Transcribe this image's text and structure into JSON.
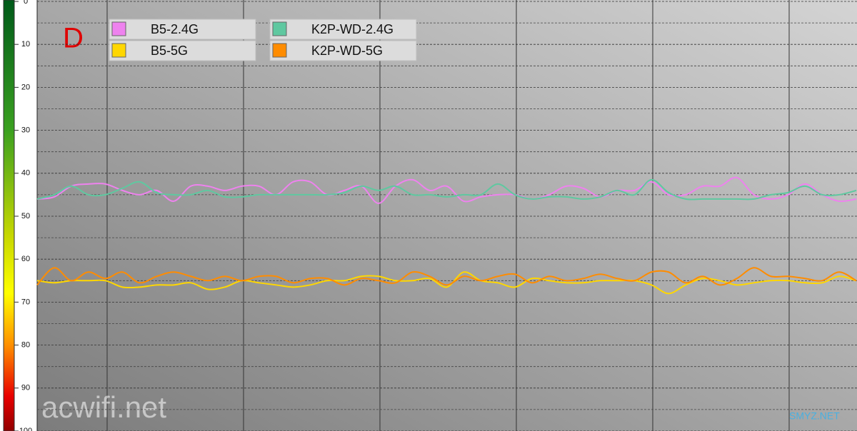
{
  "chart_data": {
    "type": "line",
    "label": "D",
    "watermarks": [
      "acwifi.net",
      "SMYZ.NET"
    ],
    "x": [
      0,
      1,
      2,
      3,
      4,
      5,
      6,
      7,
      8,
      9,
      10,
      11,
      12,
      13,
      14,
      15,
      16,
      17,
      18,
      19,
      20,
      21,
      22,
      23,
      24,
      25,
      26,
      27,
      28,
      29,
      30,
      31,
      32,
      33,
      34,
      35,
      36,
      37,
      38,
      39,
      40,
      41,
      42,
      43,
      44,
      45,
      46,
      47,
      48
    ],
    "xlim": [
      0,
      48
    ],
    "ylim": [
      0,
      100
    ],
    "y_reversed": true,
    "yticks": [
      0,
      10,
      20,
      30,
      40,
      50,
      60,
      70,
      80,
      90,
      100
    ],
    "grid": true,
    "legend": "top-left",
    "series": [
      {
        "name": "B5-2.4G",
        "color": "#ee82ee",
        "values": [
          46,
          45.5,
          43,
          42.5,
          42.5,
          44,
          45,
          44,
          46.5,
          43,
          43,
          44,
          43,
          43,
          45,
          42,
          42,
          45,
          44,
          43,
          47,
          43,
          41.5,
          44,
          43,
          46.5,
          45.5,
          45,
          45,
          46,
          45,
          43,
          43.5,
          45.5,
          44,
          44,
          42,
          45,
          45,
          43,
          43,
          41,
          45,
          46,
          45,
          42.5,
          45,
          46.5,
          46
        ]
      },
      {
        "name": "K2P-WD-2.4G",
        "color": "#5fc8a0",
        "values": [
          46,
          45,
          43,
          45,
          45,
          43.5,
          42,
          44.5,
          45,
          45,
          44,
          45.5,
          45.5,
          45,
          45,
          45,
          45,
          45,
          44.5,
          43,
          44,
          43,
          45,
          45,
          45.5,
          45,
          45,
          42.5,
          45,
          46,
          45.5,
          45.5,
          46,
          45.5,
          44,
          45,
          41.5,
          44.5,
          46,
          46,
          46,
          46,
          46,
          45,
          44.5,
          43,
          45,
          45,
          44
        ]
      },
      {
        "name": "B5-5G",
        "color": "#ffd700",
        "values": [
          65,
          65.5,
          65,
          65,
          65,
          66.5,
          66.5,
          66,
          66,
          65.5,
          67,
          66.5,
          65,
          65.5,
          66,
          66.5,
          66,
          65,
          65,
          64,
          64,
          65,
          65,
          64.5,
          66.5,
          63,
          65,
          65.5,
          66.5,
          64.5,
          65,
          65.5,
          65.5,
          65,
          65,
          65,
          66,
          68,
          66,
          64.5,
          65,
          66,
          65.5,
          65,
          65,
          65.5,
          65.5,
          64,
          65
        ]
      },
      {
        "name": "K2P-WD-5G",
        "color": "#ff8c00",
        "values": [
          66,
          62,
          65,
          63,
          64.5,
          63,
          65.5,
          64,
          63,
          64,
          65,
          64,
          65,
          64,
          64,
          65.5,
          64.5,
          64.5,
          66,
          64.5,
          65,
          65.5,
          63,
          64,
          66,
          64,
          65,
          64,
          63.5,
          65.5,
          64,
          65,
          64.5,
          63.5,
          64.5,
          65,
          63,
          63,
          65.5,
          64,
          66,
          64.5,
          62,
          64,
          64,
          64.5,
          65,
          63,
          65
        ]
      }
    ]
  }
}
